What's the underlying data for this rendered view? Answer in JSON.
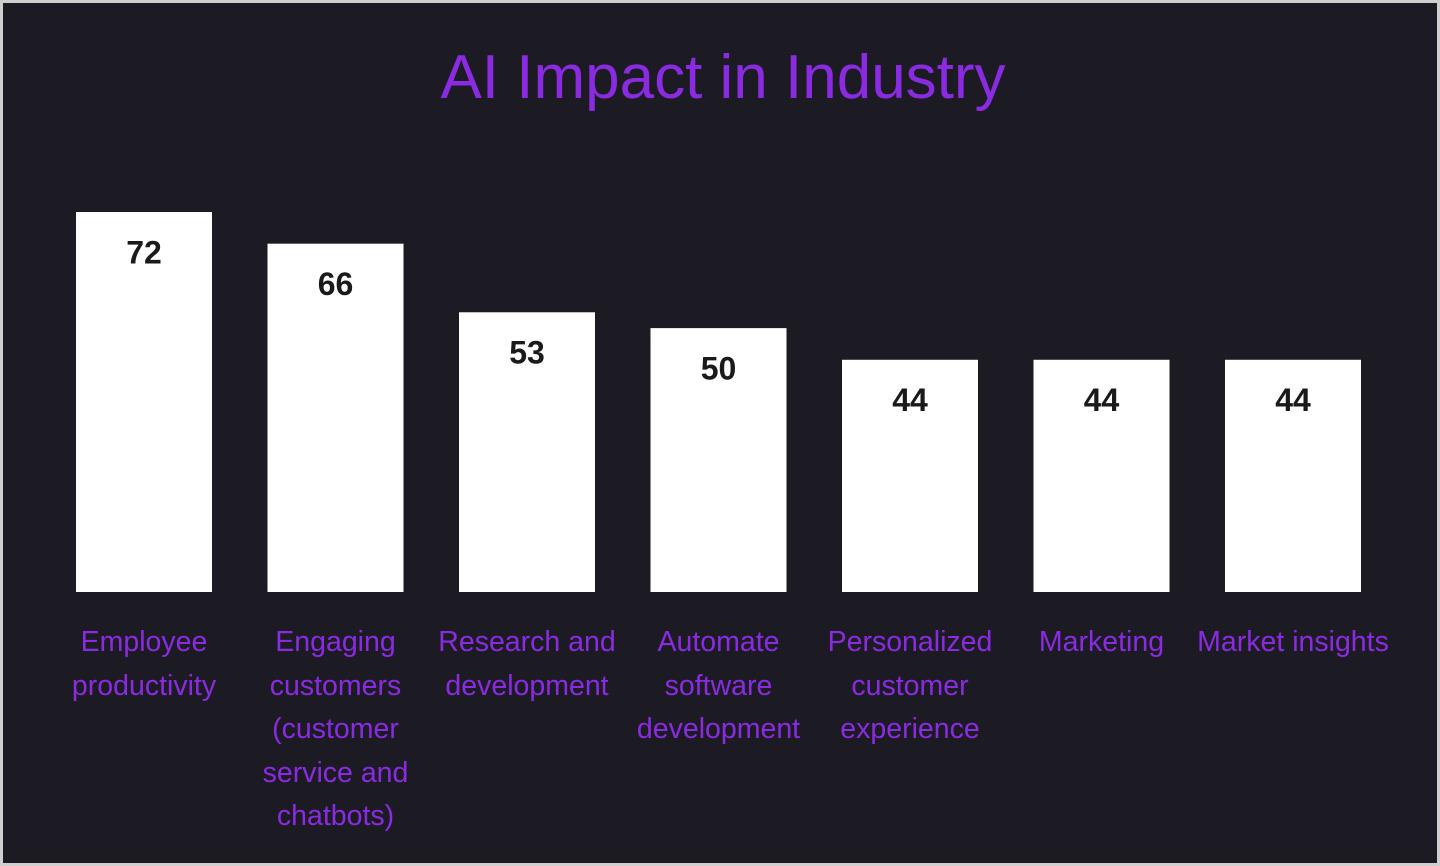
{
  "chart_data": {
    "type": "bar",
    "title": "AI Impact in Industry",
    "categories": [
      "Employee productivity",
      "Engaging customers (customer service and chatbots)",
      "Research and development",
      "Automate software development",
      "Personalized customer experience",
      "Marketing",
      "Market insights"
    ],
    "values": [
      72,
      66,
      53,
      50,
      44,
      44,
      44
    ],
    "color": "#ffffff"
  }
}
